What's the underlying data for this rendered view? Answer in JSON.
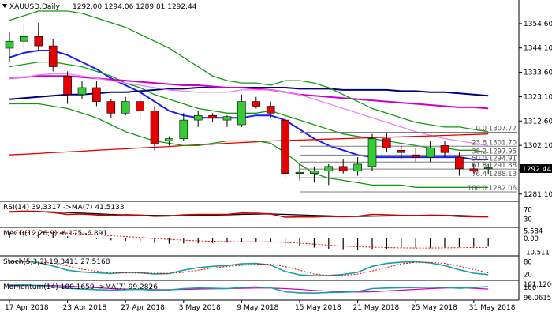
{
  "chart_data": {
    "type": "candlestick",
    "header": {
      "symbol_label": "XAUUSD,Daily",
      "ohlc_text": "1292.00 1294.06 1289.81 1292.44"
    },
    "last_price_label": "1292.44",
    "y_ticks": [
      "1354.60",
      "1344.10",
      "1333.60",
      "1323.10",
      "1312.60",
      "1302.10",
      "1291.60",
      "1281.10"
    ],
    "y_range": [
      1279.0,
      1360.0
    ],
    "x_dates": [
      "17 Apr 2018",
      "23 Apr 2018",
      "27 Apr 2018",
      "3 May 2018",
      "9 May 2018",
      "15 May 2018",
      "21 May 2018",
      "25 May 2018",
      "31 May 2018"
    ],
    "x_date_positions": [
      0,
      4,
      8,
      12,
      16,
      20,
      24,
      28,
      32
    ],
    "candles": [
      {
        "o": 1344.0,
        "h": 1351.0,
        "l": 1338.0,
        "c": 1347.0
      },
      {
        "o": 1347.0,
        "h": 1354.0,
        "l": 1344.0,
        "c": 1349.0
      },
      {
        "o": 1349.0,
        "h": 1355.0,
        "l": 1343.0,
        "c": 1345.0
      },
      {
        "o": 1345.0,
        "h": 1348.0,
        "l": 1334.0,
        "c": 1336.0
      },
      {
        "o": 1332.0,
        "h": 1334.0,
        "l": 1320.0,
        "c": 1324.0
      },
      {
        "o": 1324.0,
        "h": 1330.0,
        "l": 1322.0,
        "c": 1327.0
      },
      {
        "o": 1327.0,
        "h": 1330.0,
        "l": 1319.0,
        "c": 1321.0
      },
      {
        "o": 1321.0,
        "h": 1322.0,
        "l": 1314.0,
        "c": 1316.0
      },
      {
        "o": 1316.0,
        "h": 1323.0,
        "l": 1315.0,
        "c": 1321.0
      },
      {
        "o": 1321.0,
        "h": 1323.0,
        "l": 1313.0,
        "c": 1317.0
      },
      {
        "o": 1317.0,
        "h": 1319.0,
        "l": 1300.0,
        "c": 1303.0
      },
      {
        "o": 1304.0,
        "h": 1306.0,
        "l": 1302.0,
        "c": 1305.0
      },
      {
        "o": 1305.0,
        "h": 1316.0,
        "l": 1304.0,
        "c": 1313.0
      },
      {
        "o": 1313.0,
        "h": 1317.0,
        "l": 1310.0,
        "c": 1315.0
      },
      {
        "o": 1315.0,
        "h": 1316.0,
        "l": 1312.0,
        "c": 1314.0
      },
      {
        "o": 1313.0,
        "h": 1315.0,
        "l": 1310.0,
        "c": 1314.5
      },
      {
        "o": 1311.0,
        "h": 1324.0,
        "l": 1310.0,
        "c": 1321.0
      },
      {
        "o": 1321.0,
        "h": 1323.0,
        "l": 1318.0,
        "c": 1319.0
      },
      {
        "o": 1319.0,
        "h": 1321.0,
        "l": 1314.0,
        "c": 1316.0
      },
      {
        "o": 1313.0,
        "h": 1315.0,
        "l": 1288.0,
        "c": 1290.0
      },
      {
        "o": 1290.0,
        "h": 1294.0,
        "l": 1287.0,
        "c": 1290.5
      },
      {
        "o": 1290.0,
        "h": 1293.0,
        "l": 1286.0,
        "c": 1291.0
      },
      {
        "o": 1291.0,
        "h": 1294.0,
        "l": 1285.0,
        "c": 1293.0
      },
      {
        "o": 1293.0,
        "h": 1296.0,
        "l": 1290.0,
        "c": 1291.0
      },
      {
        "o": 1291.0,
        "h": 1297.0,
        "l": 1289.0,
        "c": 1294.0
      },
      {
        "o": 1293.0,
        "h": 1307.0,
        "l": 1291.0,
        "c": 1305.0
      },
      {
        "o": 1305.0,
        "h": 1307.5,
        "l": 1299.0,
        "c": 1301.0
      },
      {
        "o": 1300.0,
        "h": 1302.0,
        "l": 1296.0,
        "c": 1299.0
      },
      {
        "o": 1298.0,
        "h": 1301.0,
        "l": 1295.0,
        "c": 1297.0
      },
      {
        "o": 1297.0,
        "h": 1304.0,
        "l": 1295.0,
        "c": 1301.0
      },
      {
        "o": 1302.0,
        "h": 1304.0,
        "l": 1297.0,
        "c": 1299.0
      },
      {
        "o": 1297.0,
        "h": 1299.0,
        "l": 1289.0,
        "c": 1292.0
      },
      {
        "o": 1292.0,
        "h": 1294.0,
        "l": 1290.0,
        "c": 1291.0
      },
      {
        "o": 1292.0,
        "h": 1294.06,
        "l": 1289.81,
        "c": 1292.44
      }
    ],
    "moving_averages": [
      {
        "name": "blue",
        "color": "#1a1aff",
        "values": [
          1340,
          1342,
          1343,
          1343,
          1341,
          1338,
          1335,
          1331,
          1328,
          1325,
          1321,
          1317,
          1315,
          1314,
          1314,
          1314,
          1314,
          1315,
          1315,
          1313,
          1309,
          1305,
          1302,
          1300,
          1298,
          1297,
          1297,
          1297,
          1297,
          1297,
          1297,
          1297,
          1296,
          1296
        ]
      },
      {
        "name": "green",
        "color": "#129a12",
        "values": [
          1336,
          1337,
          1338,
          1338,
          1337,
          1336,
          1334,
          1332,
          1329,
          1327,
          1324,
          1322,
          1320,
          1318,
          1317,
          1316,
          1316,
          1316,
          1317,
          1315,
          1313,
          1311,
          1309,
          1307,
          1306,
          1305,
          1304,
          1303,
          1302,
          1301,
          1301,
          1300,
          1300,
          1299
        ]
      },
      {
        "name": "navy",
        "color": "#000080",
        "values": [
          1322,
          1322.5,
          1323,
          1323.5,
          1324,
          1324,
          1324.5,
          1325,
          1325,
          1325.5,
          1326,
          1326.5,
          1326.5,
          1327,
          1327,
          1327,
          1327,
          1327,
          1327,
          1327,
          1326.5,
          1326.5,
          1326.5,
          1326,
          1326,
          1326,
          1326,
          1325.5,
          1325.5,
          1325,
          1325,
          1324.5,
          1324,
          1323.5
        ]
      },
      {
        "name": "magenta",
        "color": "#cc00cc",
        "values": [
          1331,
          1331.5,
          1332,
          1332,
          1332,
          1331.5,
          1331,
          1330.5,
          1330,
          1329.5,
          1329,
          1328.5,
          1328,
          1328,
          1327.5,
          1327,
          1327,
          1326.5,
          1326,
          1325,
          1324,
          1323.5,
          1323,
          1322.5,
          1322,
          1321.5,
          1321,
          1320.5,
          1320,
          1319.5,
          1319,
          1318.5,
          1318.5,
          1318
        ]
      },
      {
        "name": "violet",
        "color": "#ee82ee",
        "values": [
          1331,
          1331.5,
          1332.5,
          1333,
          1333,
          1332,
          1331,
          1330,
          1329,
          1328,
          1327,
          1326,
          1325.5,
          1325,
          1325,
          1325,
          1326,
          1326,
          1326,
          1325,
          1324,
          1322,
          1320,
          1318,
          1316,
          1314,
          1312,
          1310,
          1308,
          1306.5,
          1305,
          1304,
          1303,
          1302
        ]
      },
      {
        "name": "red",
        "color": "#e60000",
        "values": [
          1298,
          1298.3,
          1298.6,
          1299,
          1299.3,
          1299.6,
          1300,
          1300.3,
          1300.6,
          1301,
          1301.3,
          1301.6,
          1302,
          1302.3,
          1302.6,
          1303,
          1303.3,
          1303.6,
          1304,
          1304.2,
          1304.4,
          1304.6,
          1304.8,
          1305,
          1305.2,
          1305.4,
          1305.6,
          1305.8,
          1306,
          1306.2,
          1306.4,
          1306.6,
          1306.8,
          1307
        ]
      },
      {
        "name": "bb-upper",
        "color": "#129a12",
        "values": [
          1356,
          1358,
          1360,
          1360,
          1360,
          1359,
          1357,
          1355,
          1353,
          1350,
          1347,
          1344,
          1340,
          1336,
          1332,
          1330,
          1329,
          1329,
          1328,
          1330,
          1330,
          1329,
          1327,
          1324,
          1321,
          1318,
          1316,
          1314,
          1312,
          1311,
          1310,
          1310,
          1309,
          1308
        ]
      },
      {
        "name": "bb-lower",
        "color": "#129a12",
        "values": [
          1320,
          1320,
          1320,
          1319,
          1318,
          1316,
          1314,
          1311,
          1308,
          1306,
          1304,
          1303,
          1302,
          1302,
          1303,
          1304,
          1304,
          1304,
          1303,
          1299,
          1294,
          1290,
          1288,
          1287,
          1286,
          1285,
          1285,
          1285,
          1284,
          1284,
          1284,
          1284,
          1284,
          1284
        ]
      }
    ],
    "fibonacci": {
      "start_index": 20,
      "levels": [
        {
          "label": "0.0 1307.77",
          "price": 1307.77
        },
        {
          "label": "23.6 1301.70",
          "price": 1301.7
        },
        {
          "label": "38.2 1297.95",
          "price": 1297.95
        },
        {
          "label": "50.0 1294.91",
          "price": 1294.91
        },
        {
          "label": "61.8 1291.88",
          "price": 1291.88
        },
        {
          "label": "76.4 1288.13",
          "price": 1288.13
        },
        {
          "label": "100.0 1282.06",
          "price": 1282.06
        }
      ]
    },
    "rsi": {
      "label": "RSI(14) 39.3317 ->MA(7) 41.5133",
      "ticks": [
        "70",
        "30"
      ],
      "range": [
        0,
        100
      ],
      "values": [
        62,
        64,
        63,
        58,
        50,
        52,
        48,
        45,
        49,
        47,
        42,
        43,
        48,
        50,
        50,
        50,
        56,
        55,
        52,
        38,
        39,
        39,
        41,
        40,
        42,
        50,
        48,
        46,
        45,
        47,
        46,
        41,
        40,
        39.3
      ],
      "ma": [
        60,
        61,
        62,
        61,
        58,
        56,
        53,
        50,
        48,
        47,
        46,
        45,
        45,
        46,
        47,
        48,
        50,
        51,
        52,
        50,
        48,
        46,
        44,
        42,
        41,
        42,
        43,
        44,
        45,
        45,
        46,
        45,
        43,
        41.5
      ]
    },
    "macd": {
      "label": "MACD(12,26,9) -6.175 -6.891",
      "ticks": [
        "5.584",
        "0.00",
        "-10.511"
      ],
      "range": [
        -12,
        7
      ],
      "histogram": [
        4.5,
        5.0,
        4.8,
        3.5,
        1.5,
        0.5,
        -0.5,
        -1.5,
        -2.0,
        -2.5,
        -3.5,
        -4.0,
        -4.0,
        -3.8,
        -3.5,
        -3.3,
        -2.8,
        -2.5,
        -2.5,
        -4.5,
        -6.0,
        -7.0,
        -7.8,
        -8.2,
        -8.4,
        -8.0,
        -7.8,
        -7.6,
        -7.4,
        -7.2,
        -7.0,
        -6.8,
        -6.5,
        -6.2
      ],
      "signal": [
        4.0,
        4.3,
        4.5,
        4.4,
        4.0,
        3.4,
        2.7,
        2.0,
        1.3,
        0.6,
        -0.1,
        -0.8,
        -1.4,
        -1.9,
        -2.2,
        -2.5,
        -2.6,
        -2.7,
        -2.7,
        -3.1,
        -3.7,
        -4.4,
        -5.1,
        -5.8,
        -6.3,
        -6.7,
        -7.0,
        -7.2,
        -7.3,
        -7.3,
        -7.2,
        -7.1,
        -7.0,
        -6.9
      ]
    },
    "stoch": {
      "label": "Stoch(5,3,3) 19.3411 27.5168",
      "ticks": [
        "80",
        "20"
      ],
      "range": [
        0,
        100
      ],
      "k": [
        80,
        82,
        76,
        60,
        40,
        32,
        28,
        24,
        30,
        28,
        22,
        24,
        40,
        52,
        58,
        62,
        70,
        72,
        64,
        34,
        18,
        14,
        15,
        20,
        30,
        58,
        72,
        78,
        80,
        74,
        62,
        42,
        26,
        19.3
      ],
      "d": [
        75,
        78,
        79,
        73,
        60,
        45,
        35,
        28,
        27,
        27,
        26,
        25,
        30,
        40,
        50,
        57,
        63,
        68,
        69,
        57,
        40,
        22,
        16,
        16,
        22,
        36,
        53,
        70,
        77,
        77,
        72,
        59,
        43,
        27.5
      ]
    },
    "momentum": {
      "label": "Momentum(14) 100.1659 ->MA(7) 99.2826",
      "ticks": [
        "101.1206",
        "100",
        "96.0615"
      ],
      "range": [
        95.5,
        102
      ],
      "values": [
        100.8,
        100.9,
        100.6,
        100.2,
        99.6,
        99.3,
        99.1,
        98.9,
        99.1,
        99.2,
        98.9,
        99.0,
        99.5,
        99.7,
        99.6,
        99.5,
        99.9,
        100.1,
        99.8,
        98.3,
        97.9,
        97.8,
        98.0,
        98.1,
        98.4,
        99.5,
        99.7,
        99.8,
        99.9,
        100.0,
        100.0,
        99.6,
        99.9,
        100.2
      ],
      "ma": [
        100.5,
        100.6,
        100.7,
        100.6,
        100.4,
        100.1,
        99.8,
        99.5,
        99.3,
        99.2,
        99.1,
        99.1,
        99.2,
        99.3,
        99.4,
        99.5,
        99.6,
        99.7,
        99.7,
        99.5,
        99.2,
        98.8,
        98.5,
        98.3,
        98.2,
        98.3,
        98.6,
        98.9,
        99.2,
        99.5,
        99.7,
        99.8,
        99.6,
        99.3
      ]
    },
    "colors": {
      "bull_body": "#33cc33",
      "bear_body": "#e60000",
      "wick": "#000000",
      "rsi_line": "#cc0000",
      "rsi_ma": "#000000",
      "macd_hist": "#000000",
      "macd_signal": "#e60000",
      "stoch_k": "#17a0a0",
      "stoch_d": "#e60000",
      "mom_line": "#17a0a0",
      "mom_ma": "#cc00cc"
    }
  }
}
